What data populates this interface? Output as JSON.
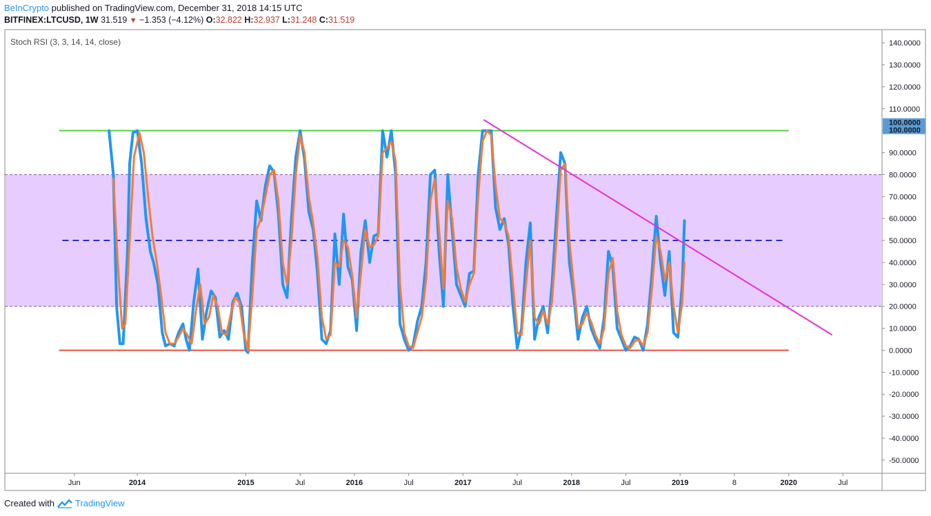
{
  "header": {
    "brand": "BeInCrypto",
    "published": "published on TradingView.com, December 31, 2018 14:15 UTC",
    "symbol": "BITFINEX:LTCUSD, 1W",
    "last": "31.519",
    "change": "−1.353 (−4.12%)",
    "o_label": "O:",
    "o_value": "32.822",
    "h_label": "H:",
    "h_value": "32.937",
    "l_label": "L:",
    "l_value": "31.248",
    "c_label": "C:",
    "c_value": "31.519"
  },
  "footer": {
    "created_with": "Created with",
    "brand": "TradingView"
  },
  "colors": {
    "k_line": "#2196f3",
    "d_line": "#f57c35",
    "upper": "#4cd137",
    "lower": "#e74c3c",
    "mid": "#2c2cc8",
    "band": "#e6ccff",
    "trend": "#e52fd6",
    "badge": "#5b9bd5"
  },
  "chart_data": {
    "type": "line",
    "indicator_label": "Stoch RSI (3, 3, 14, 14, close)",
    "ylim": [
      -56,
      146
    ],
    "y_ticks": [
      "140.0000",
      "130.0000",
      "120.0000",
      "110.0000",
      "100.0000",
      "90.0000",
      "80.0000",
      "70.0000",
      "60.0000",
      "50.0000",
      "40.0000",
      "30.0000",
      "20.0000",
      "10.0000",
      "0.0000",
      "-10.0000",
      "-20.0000",
      "-30.0000",
      "-40.0000",
      "-50.0000"
    ],
    "x_ticks": [
      {
        "label": "Jun",
        "t": 2013.42,
        "bold": false
      },
      {
        "label": "2014",
        "t": 2014.0,
        "bold": true
      },
      {
        "label": "2015",
        "t": 2015.0,
        "bold": true
      },
      {
        "label": "Jul",
        "t": 2015.5,
        "bold": false
      },
      {
        "label": "2016",
        "t": 2016.0,
        "bold": true
      },
      {
        "label": "Jul",
        "t": 2016.5,
        "bold": false
      },
      {
        "label": "2017",
        "t": 2017.0,
        "bold": true
      },
      {
        "label": "Jul",
        "t": 2017.5,
        "bold": false
      },
      {
        "label": "2018",
        "t": 2018.0,
        "bold": true
      },
      {
        "label": "Jul",
        "t": 2018.5,
        "bold": false
      },
      {
        "label": "2019",
        "t": 2019.0,
        "bold": true
      },
      {
        "label": "8",
        "t": 2019.5,
        "bold": false
      },
      {
        "label": "2020",
        "t": 2020.0,
        "bold": true
      },
      {
        "label": "Jul",
        "t": 2020.5,
        "bold": false
      }
    ],
    "x_range": [
      2012.78,
      2020.86
    ],
    "upper_line": {
      "value": 100,
      "t_start": 2013.28,
      "t_end": 2020.0
    },
    "lower_line": {
      "value": 0,
      "t_start": 2013.28,
      "t_end": 2020.0
    },
    "mid_line": {
      "value": 50,
      "t_start": 2013.31,
      "t_end": 2019.97
    },
    "band": [
      20,
      80
    ],
    "last_value_badges": [
      "100.0000",
      "100.0000"
    ],
    "trendline": {
      "t1": 2017.19,
      "v1": 105,
      "t2": 2020.4,
      "v2": 7
    },
    "series": [
      {
        "name": "K",
        "color": "#2196f3",
        "points": [
          [
            2013.74,
            100
          ],
          [
            2013.78,
            80
          ],
          [
            2013.81,
            20
          ],
          [
            2013.84,
            3
          ],
          [
            2013.87,
            3
          ],
          [
            2013.91,
            45
          ],
          [
            2013.93,
            85
          ],
          [
            2013.96,
            99
          ],
          [
            2014.0,
            100
          ],
          [
            2014.04,
            85
          ],
          [
            2014.08,
            60
          ],
          [
            2014.12,
            45
          ],
          [
            2014.15,
            40
          ],
          [
            2014.19,
            30
          ],
          [
            2014.23,
            8
          ],
          [
            2014.26,
            2
          ],
          [
            2014.3,
            3
          ],
          [
            2014.34,
            2
          ],
          [
            2014.38,
            8
          ],
          [
            2014.42,
            12
          ],
          [
            2014.45,
            5
          ],
          [
            2014.48,
            0
          ],
          [
            2014.52,
            22
          ],
          [
            2014.56,
            37
          ],
          [
            2014.6,
            5
          ],
          [
            2014.64,
            18
          ],
          [
            2014.68,
            27
          ],
          [
            2014.72,
            24
          ],
          [
            2014.76,
            6
          ],
          [
            2014.8,
            9
          ],
          [
            2014.84,
            5
          ],
          [
            2014.88,
            22
          ],
          [
            2014.92,
            26
          ],
          [
            2014.96,
            20
          ],
          [
            2015.0,
            0
          ],
          [
            2015.02,
            -1
          ],
          [
            2015.06,
            40
          ],
          [
            2015.1,
            68
          ],
          [
            2015.14,
            59
          ],
          [
            2015.18,
            75
          ],
          [
            2015.22,
            84
          ],
          [
            2015.26,
            81
          ],
          [
            2015.3,
            62
          ],
          [
            2015.34,
            30
          ],
          [
            2015.38,
            24
          ],
          [
            2015.42,
            60
          ],
          [
            2015.46,
            88
          ],
          [
            2015.5,
            100
          ],
          [
            2015.54,
            87
          ],
          [
            2015.58,
            63
          ],
          [
            2015.62,
            55
          ],
          [
            2015.66,
            35
          ],
          [
            2015.7,
            5
          ],
          [
            2015.74,
            3
          ],
          [
            2015.78,
            9
          ],
          [
            2015.82,
            53
          ],
          [
            2015.86,
            30
          ],
          [
            2015.9,
            62
          ],
          [
            2015.94,
            38
          ],
          [
            2015.98,
            32
          ],
          [
            2016.02,
            9
          ],
          [
            2016.06,
            45
          ],
          [
            2016.1,
            59
          ],
          [
            2016.14,
            40
          ],
          [
            2016.18,
            52
          ],
          [
            2016.22,
            53
          ],
          [
            2016.26,
            100
          ],
          [
            2016.3,
            88
          ],
          [
            2016.34,
            100
          ],
          [
            2016.38,
            80
          ],
          [
            2016.42,
            12
          ],
          [
            2016.46,
            5
          ],
          [
            2016.5,
            0
          ],
          [
            2016.54,
            2
          ],
          [
            2016.58,
            13
          ],
          [
            2016.62,
            20
          ],
          [
            2016.66,
            40
          ],
          [
            2016.7,
            80
          ],
          [
            2016.74,
            82
          ],
          [
            2016.78,
            45
          ],
          [
            2016.82,
            20
          ],
          [
            2016.86,
            80
          ],
          [
            2016.9,
            55
          ],
          [
            2016.94,
            30
          ],
          [
            2016.98,
            25
          ],
          [
            2017.02,
            20
          ],
          [
            2017.06,
            35
          ],
          [
            2017.1,
            36
          ],
          [
            2017.14,
            80
          ],
          [
            2017.18,
            100
          ],
          [
            2017.22,
            100
          ],
          [
            2017.26,
            100
          ],
          [
            2017.3,
            65
          ],
          [
            2017.34,
            55
          ],
          [
            2017.38,
            60
          ],
          [
            2017.42,
            48
          ],
          [
            2017.46,
            20
          ],
          [
            2017.5,
            1
          ],
          [
            2017.54,
            10
          ],
          [
            2017.58,
            40
          ],
          [
            2017.62,
            58
          ],
          [
            2017.66,
            5
          ],
          [
            2017.7,
            15
          ],
          [
            2017.74,
            20
          ],
          [
            2017.78,
            8
          ],
          [
            2017.82,
            30
          ],
          [
            2017.86,
            60
          ],
          [
            2017.9,
            90
          ],
          [
            2017.94,
            85
          ],
          [
            2017.98,
            40
          ],
          [
            2018.02,
            25
          ],
          [
            2018.06,
            5
          ],
          [
            2018.1,
            15
          ],
          [
            2018.14,
            20
          ],
          [
            2018.18,
            10
          ],
          [
            2018.22,
            5
          ],
          [
            2018.26,
            1
          ],
          [
            2018.3,
            15
          ],
          [
            2018.34,
            45
          ],
          [
            2018.38,
            38
          ],
          [
            2018.42,
            10
          ],
          [
            2018.46,
            5
          ],
          [
            2018.5,
            0
          ],
          [
            2018.54,
            2
          ],
          [
            2018.58,
            6
          ],
          [
            2018.62,
            5
          ],
          [
            2018.66,
            0
          ],
          [
            2018.7,
            12
          ],
          [
            2018.74,
            35
          ],
          [
            2018.78,
            61
          ],
          [
            2018.82,
            40
          ],
          [
            2018.86,
            25
          ],
          [
            2018.9,
            45
          ],
          [
            2018.94,
            8
          ],
          [
            2018.98,
            6
          ],
          [
            2019.02,
            30
          ],
          [
            2019.04,
            59
          ]
        ]
      },
      {
        "name": "D",
        "color": "#f57c35",
        "points": [
          [
            2013.78,
            78
          ],
          [
            2013.82,
            40
          ],
          [
            2013.86,
            10
          ],
          [
            2013.89,
            12
          ],
          [
            2013.93,
            50
          ],
          [
            2013.97,
            88
          ],
          [
            2014.02,
            99
          ],
          [
            2014.06,
            90
          ],
          [
            2014.1,
            70
          ],
          [
            2014.14,
            52
          ],
          [
            2014.18,
            40
          ],
          [
            2014.22,
            25
          ],
          [
            2014.26,
            8
          ],
          [
            2014.3,
            3
          ],
          [
            2014.34,
            3
          ],
          [
            2014.38,
            6
          ],
          [
            2014.42,
            10
          ],
          [
            2014.46,
            7
          ],
          [
            2014.5,
            3
          ],
          [
            2014.54,
            18
          ],
          [
            2014.58,
            30
          ],
          [
            2014.62,
            12
          ],
          [
            2014.66,
            15
          ],
          [
            2014.7,
            25
          ],
          [
            2014.74,
            20
          ],
          [
            2014.78,
            8
          ],
          [
            2014.82,
            7
          ],
          [
            2014.86,
            16
          ],
          [
            2014.9,
            24
          ],
          [
            2014.94,
            22
          ],
          [
            2014.98,
            8
          ],
          [
            2015.02,
            0
          ],
          [
            2015.06,
            25
          ],
          [
            2015.1,
            55
          ],
          [
            2015.14,
            60
          ],
          [
            2015.18,
            70
          ],
          [
            2015.22,
            80
          ],
          [
            2015.26,
            82
          ],
          [
            2015.3,
            68
          ],
          [
            2015.34,
            40
          ],
          [
            2015.38,
            30
          ],
          [
            2015.42,
            50
          ],
          [
            2015.46,
            80
          ],
          [
            2015.5,
            98
          ],
          [
            2015.54,
            90
          ],
          [
            2015.58,
            70
          ],
          [
            2015.62,
            58
          ],
          [
            2015.66,
            42
          ],
          [
            2015.7,
            15
          ],
          [
            2015.74,
            5
          ],
          [
            2015.78,
            7
          ],
          [
            2015.82,
            40
          ],
          [
            2015.86,
            38
          ],
          [
            2015.9,
            50
          ],
          [
            2015.94,
            47
          ],
          [
            2015.98,
            34
          ],
          [
            2016.02,
            15
          ],
          [
            2016.06,
            35
          ],
          [
            2016.1,
            55
          ],
          [
            2016.14,
            47
          ],
          [
            2016.18,
            48
          ],
          [
            2016.22,
            52
          ],
          [
            2016.26,
            90
          ],
          [
            2016.3,
            92
          ],
          [
            2016.34,
            95
          ],
          [
            2016.38,
            86
          ],
          [
            2016.42,
            30
          ],
          [
            2016.46,
            8
          ],
          [
            2016.5,
            2
          ],
          [
            2016.54,
            1
          ],
          [
            2016.58,
            8
          ],
          [
            2016.62,
            15
          ],
          [
            2016.66,
            32
          ],
          [
            2016.7,
            68
          ],
          [
            2016.74,
            78
          ],
          [
            2016.78,
            55
          ],
          [
            2016.82,
            28
          ],
          [
            2016.86,
            68
          ],
          [
            2016.9,
            60
          ],
          [
            2016.94,
            38
          ],
          [
            2016.98,
            28
          ],
          [
            2017.02,
            22
          ],
          [
            2017.06,
            30
          ],
          [
            2017.1,
            35
          ],
          [
            2017.14,
            70
          ],
          [
            2017.18,
            95
          ],
          [
            2017.22,
            100
          ],
          [
            2017.26,
            98
          ],
          [
            2017.3,
            75
          ],
          [
            2017.34,
            60
          ],
          [
            2017.38,
            58
          ],
          [
            2017.42,
            52
          ],
          [
            2017.46,
            30
          ],
          [
            2017.5,
            8
          ],
          [
            2017.54,
            7
          ],
          [
            2017.58,
            30
          ],
          [
            2017.62,
            50
          ],
          [
            2017.66,
            15
          ],
          [
            2017.7,
            12
          ],
          [
            2017.74,
            18
          ],
          [
            2017.78,
            12
          ],
          [
            2017.82,
            22
          ],
          [
            2017.86,
            50
          ],
          [
            2017.9,
            82
          ],
          [
            2017.94,
            85
          ],
          [
            2017.98,
            50
          ],
          [
            2018.02,
            30
          ],
          [
            2018.06,
            10
          ],
          [
            2018.1,
            12
          ],
          [
            2018.14,
            17
          ],
          [
            2018.18,
            13
          ],
          [
            2018.22,
            7
          ],
          [
            2018.26,
            3
          ],
          [
            2018.3,
            10
          ],
          [
            2018.34,
            35
          ],
          [
            2018.38,
            42
          ],
          [
            2018.42,
            18
          ],
          [
            2018.46,
            7
          ],
          [
            2018.5,
            2
          ],
          [
            2018.54,
            1
          ],
          [
            2018.58,
            4
          ],
          [
            2018.62,
            5
          ],
          [
            2018.66,
            2
          ],
          [
            2018.7,
            8
          ],
          [
            2018.74,
            28
          ],
          [
            2018.78,
            52
          ],
          [
            2018.82,
            45
          ],
          [
            2018.86,
            32
          ],
          [
            2018.9,
            40
          ],
          [
            2018.94,
            20
          ],
          [
            2018.98,
            8
          ],
          [
            2019.02,
            22
          ],
          [
            2019.04,
            40
          ]
        ]
      }
    ]
  }
}
